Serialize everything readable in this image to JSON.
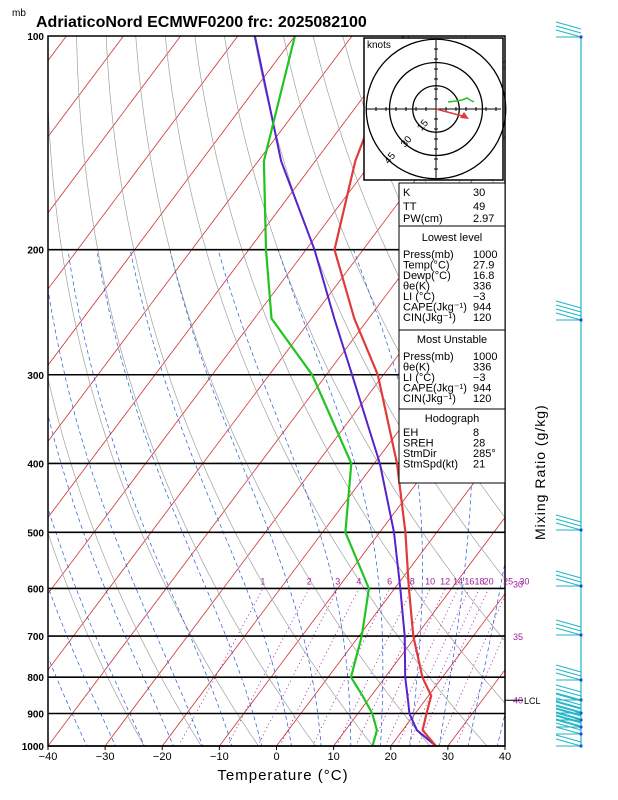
{
  "title": "AdriaticoNord ECMWF0200 frc: 2025082100",
  "colors": {
    "temperature": "#e03a3a",
    "dewpoint": "#22c422",
    "parcel": "#5522cc",
    "isotherm": "#d03030",
    "dry_adiabat": "#a0a0a0",
    "moist_adiabat": "#1f5ad6",
    "mixing_ratio": "#a020a0",
    "hodograph_line": "#22c422",
    "storm_motion": "#e03a3a",
    "wind_barb": "#1fb5c5",
    "frame": "#000000"
  },
  "chart_data": {
    "type": "skew-t",
    "title": "AdriaticoNord ECMWF0200 frc: 2025082100",
    "xlabel": "Temperature (°C)",
    "ylabel_unit": "mb",
    "right_label": "Mixing Ratio (g/kg)",
    "xlim": [
      -40,
      40
    ],
    "ylim": [
      1000,
      100
    ],
    "x_ticks": [
      "−40",
      "−30",
      "−20",
      "−10",
      "0",
      "10",
      "20",
      "30",
      "40"
    ],
    "x_tick_values": [
      -40,
      -30,
      -20,
      -10,
      0,
      10,
      20,
      30,
      40
    ],
    "pressure_ticks": [
      1000,
      900,
      800,
      700,
      600,
      500,
      400,
      300,
      200,
      100
    ],
    "mixing_ratio_labels": [
      "1",
      "2",
      "3",
      "4",
      "6",
      "8",
      "10",
      "12",
      "14",
      "16",
      "18",
      "20",
      "25",
      "30"
    ],
    "mixing_ratio_values": [
      1,
      2,
      3,
      4,
      6,
      8,
      10,
      12,
      14,
      16,
      18,
      20,
      25,
      30
    ],
    "side_labels": [
      {
        "text": "30",
        "pressure": 590
      },
      {
        "text": "35",
        "pressure": 700
      },
      {
        "text": "40",
        "pressure": 860
      }
    ],
    "lcl_label": "LCL",
    "lcl_pressure": 862,
    "temperature_profile": [
      {
        "p": 1000,
        "t": 27.9
      },
      {
        "p": 950,
        "t": 23.5
      },
      {
        "p": 900,
        "t": 22.0
      },
      {
        "p": 850,
        "t": 20.5
      },
      {
        "p": 800,
        "t": 16.5
      },
      {
        "p": 700,
        "t": 9.5
      },
      {
        "p": 600,
        "t": 2.5
      },
      {
        "p": 500,
        "t": -5.5
      },
      {
        "p": 400,
        "t": -16.0
      },
      {
        "p": 300,
        "t": -31.0
      },
      {
        "p": 250,
        "t": -42.5
      },
      {
        "p": 200,
        "t": -55.0
      },
      {
        "p": 150,
        "t": -63.0
      },
      {
        "p": 100,
        "t": -71.0
      }
    ],
    "dewpoint_profile": [
      {
        "p": 1000,
        "t": 16.8
      },
      {
        "p": 950,
        "t": 15.5
      },
      {
        "p": 900,
        "t": 12.5
      },
      {
        "p": 850,
        "t": 8.5
      },
      {
        "p": 800,
        "t": 4.0
      },
      {
        "p": 700,
        "t": 0.5
      },
      {
        "p": 600,
        "t": -4.5
      },
      {
        "p": 500,
        "t": -16.0
      },
      {
        "p": 400,
        "t": -24.0
      },
      {
        "p": 300,
        "t": -42.5
      },
      {
        "p": 250,
        "t": -57.0
      },
      {
        "p": 200,
        "t": -67.0
      },
      {
        "p": 150,
        "t": -79.0
      },
      {
        "p": 100,
        "t": -90.0
      }
    ],
    "parcel_profile": [
      {
        "p": 1000,
        "t": 27.9
      },
      {
        "p": 950,
        "t": 22.5
      },
      {
        "p": 900,
        "t": 19.0
      },
      {
        "p": 862,
        "t": 17.0
      },
      {
        "p": 800,
        "t": 13.5
      },
      {
        "p": 700,
        "t": 8.0
      },
      {
        "p": 600,
        "t": 1.0
      },
      {
        "p": 500,
        "t": -7.5
      },
      {
        "p": 400,
        "t": -19.0
      },
      {
        "p": 300,
        "t": -35.5
      },
      {
        "p": 250,
        "t": -46.0
      },
      {
        "p": 200,
        "t": -58.5
      },
      {
        "p": 150,
        "t": -76.0
      },
      {
        "p": 100,
        "t": -97.0
      }
    ]
  },
  "hodograph": {
    "units_label": "knots",
    "ring_labels": [
      "15",
      "30",
      "45"
    ],
    "ring_values": [
      15,
      30,
      45
    ]
  },
  "indices": {
    "k_label": "K",
    "k_value": "30",
    "tt_label": "TT",
    "tt_value": "49",
    "pw_label": "PW(cm)",
    "pw_value": "2.97"
  },
  "lowest_level": {
    "heading": "Lowest level",
    "rows": [
      {
        "label": "Press(mb)",
        "value": "1000"
      },
      {
        "label": "Temp(°C)",
        "value": "27.9"
      },
      {
        "label": "Dewp(°C)",
        "value": "16.8"
      },
      {
        "label": "θe(K)",
        "value": "336"
      },
      {
        "label": "LI (°C)",
        "value": "−3"
      },
      {
        "label": "CAPE(Jkg⁻¹)",
        "value": "944"
      },
      {
        "label": "CIN(Jkg⁻¹)",
        "value": "120"
      }
    ]
  },
  "most_unstable": {
    "heading": "Most Unstable",
    "rows": [
      {
        "label": "Press(mb)",
        "value": "1000"
      },
      {
        "label": "θe(K)",
        "value": "336"
      },
      {
        "label": "LI (°C)",
        "value": "−3"
      },
      {
        "label": "CAPE(Jkg⁻¹)",
        "value": "944"
      },
      {
        "label": "CIN(Jkg⁻¹)",
        "value": "120"
      }
    ]
  },
  "hodograph_stats": {
    "heading": "Hodograph",
    "rows": [
      {
        "label": "EH",
        "value": "8"
      },
      {
        "label": "SREH",
        "value": "28"
      },
      {
        "label": "StmDir",
        "value": "285°"
      },
      {
        "label": "StmSpd(kt)",
        "value": "21"
      }
    ]
  }
}
